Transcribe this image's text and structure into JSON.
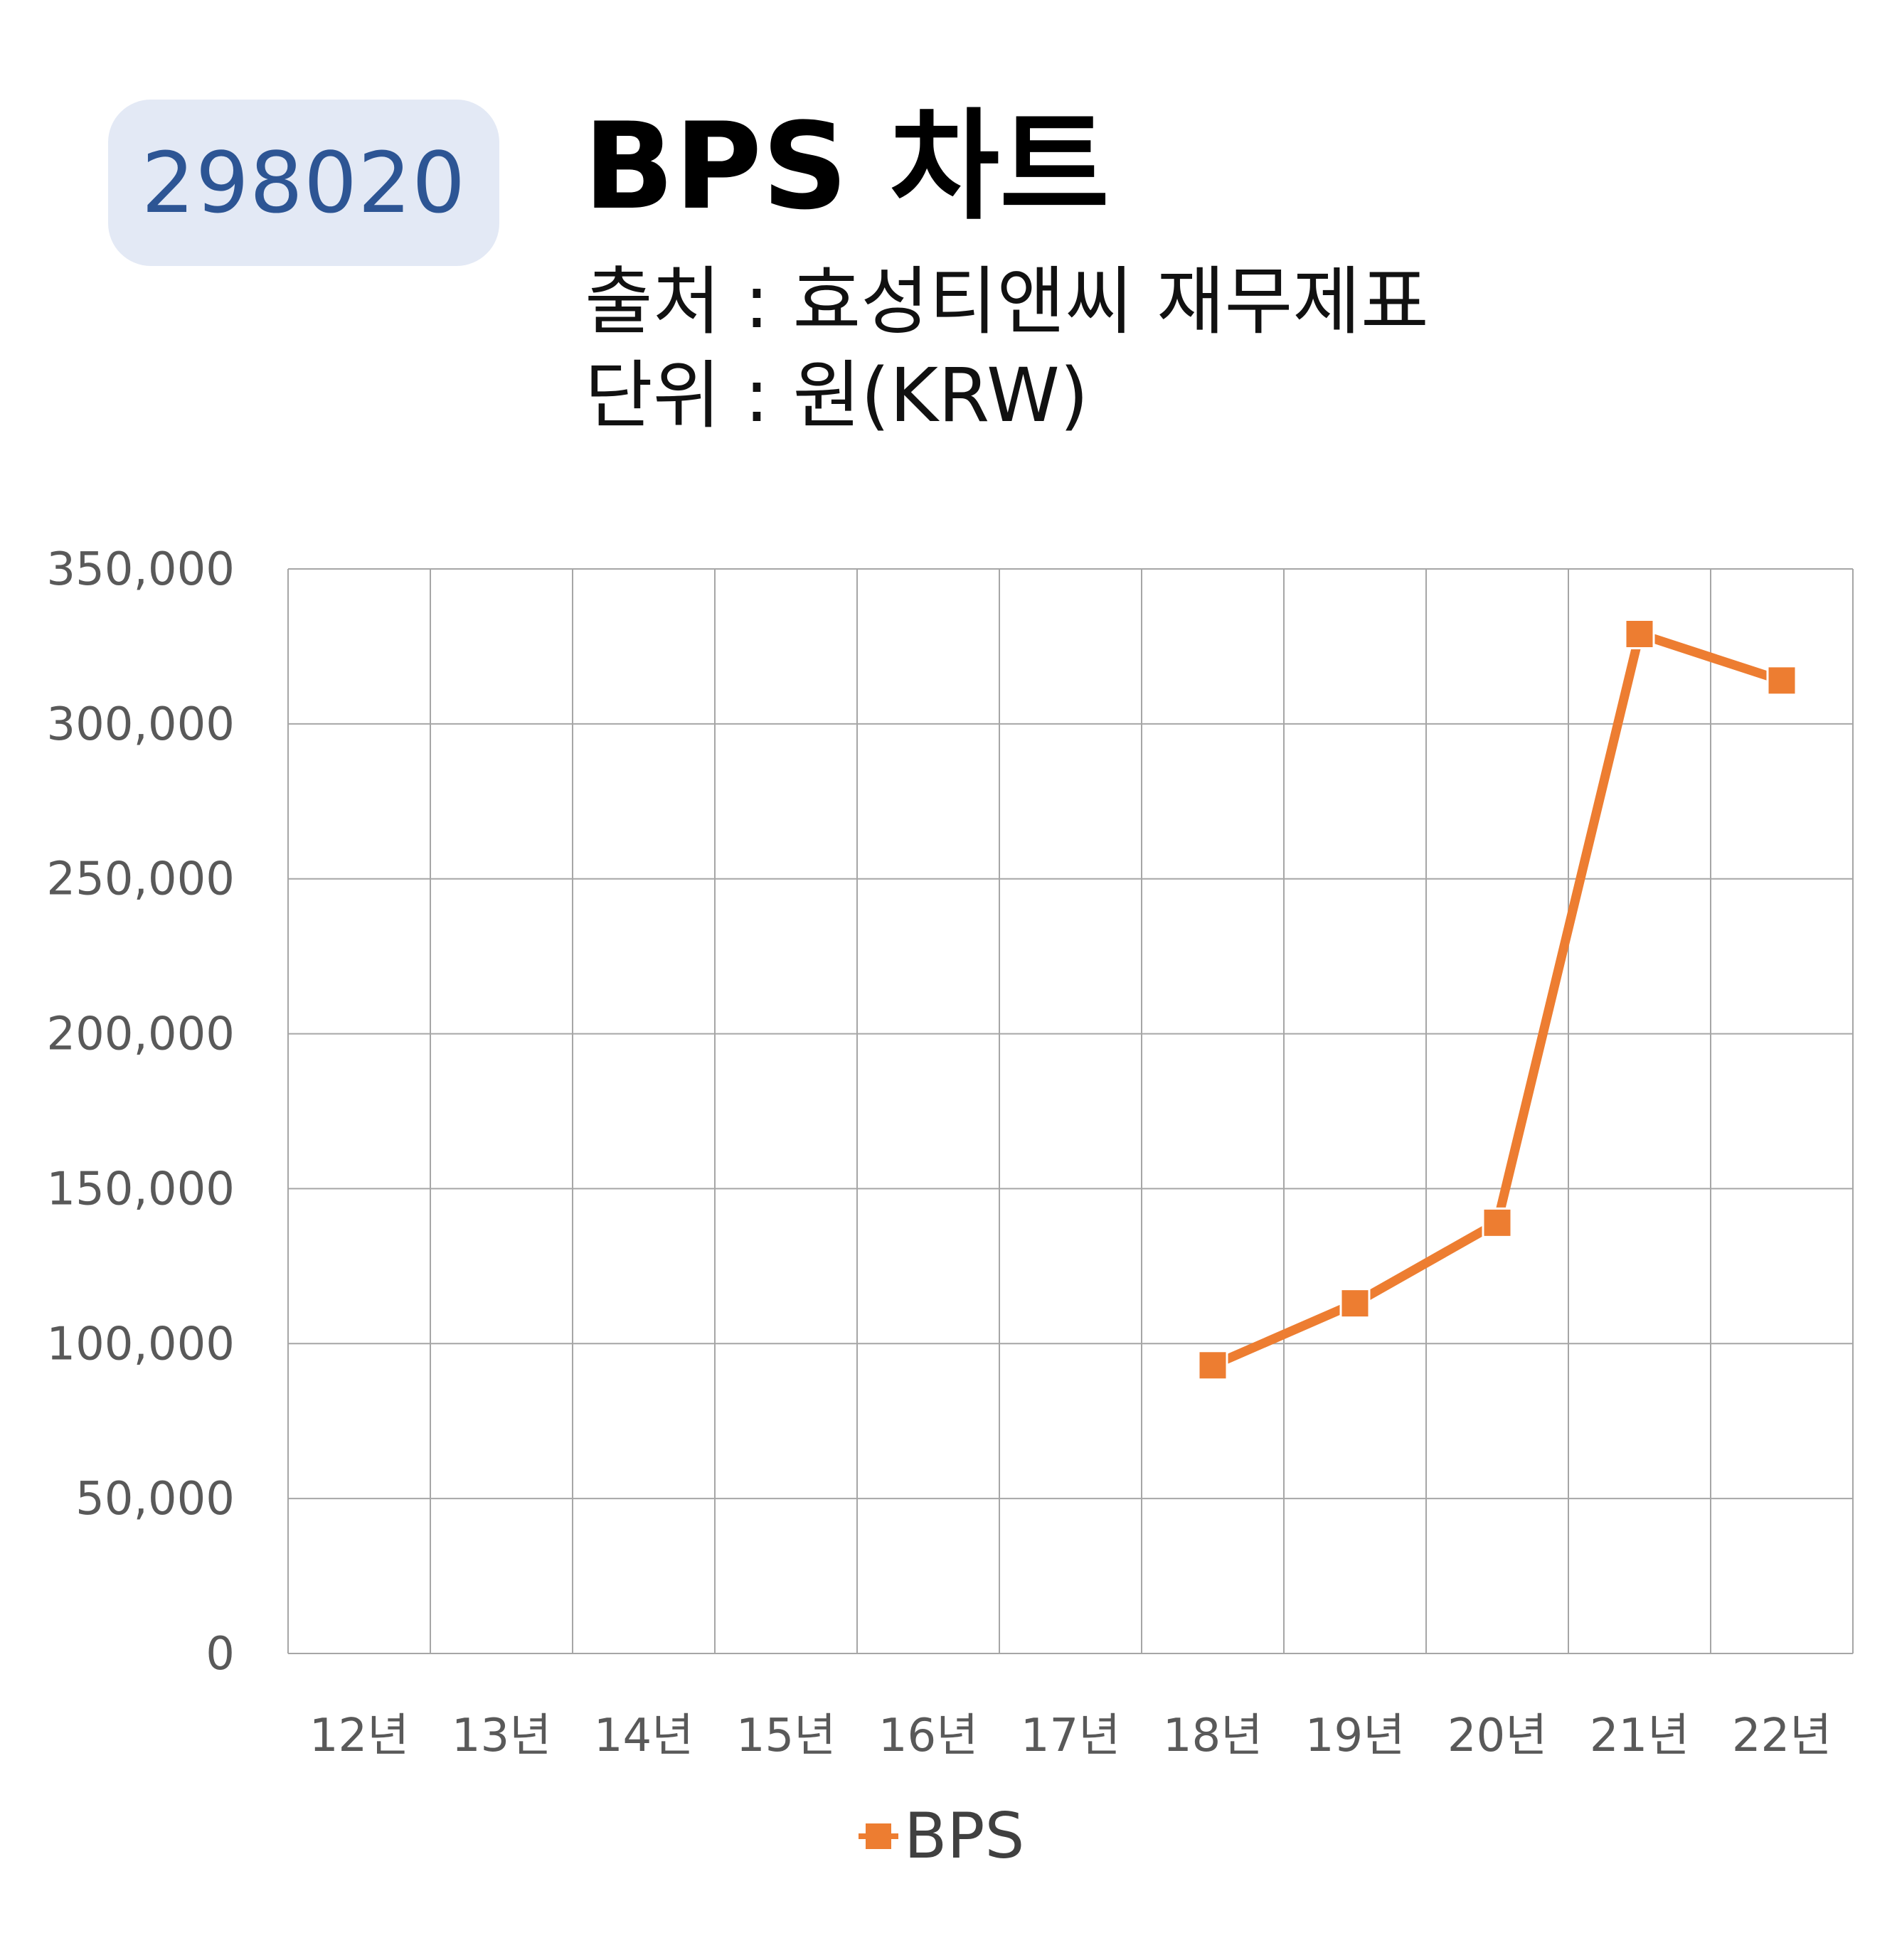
{
  "header": {
    "code": "298020",
    "title": "BPS 차트",
    "source": "출처 : 효성티앤씨 재무제표",
    "unit": "단위 : 원(KRW)"
  },
  "colors": {
    "series": "#ed7d31",
    "badge_bg": "#e3e9f5",
    "badge_text": "#2d5594",
    "grid": "#a6a6a6",
    "tick_text": "#595959"
  },
  "chart_data": {
    "type": "line",
    "categories": [
      "12년",
      "13년",
      "14년",
      "15년",
      "16년",
      "17년",
      "18년",
      "19년",
      "20년",
      "21년",
      "22년"
    ],
    "series": [
      {
        "name": "BPS",
        "values": [
          null,
          null,
          null,
          null,
          null,
          null,
          93000,
          113000,
          139000,
          329000,
          314000
        ],
        "marker": "square"
      }
    ],
    "ylim": [
      0,
      350000
    ],
    "yticks": [
      "0",
      "50,000",
      "100,000",
      "150,000",
      "200,000",
      "250,000",
      "300,000",
      "350,000"
    ],
    "grid": true,
    "legend": "bottom"
  }
}
